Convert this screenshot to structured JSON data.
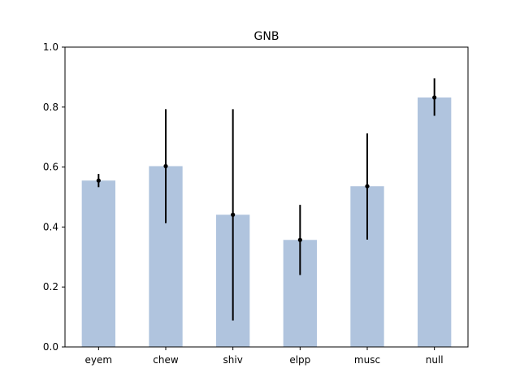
{
  "chart_data": {
    "type": "bar",
    "title": "GNB",
    "xlabel": "",
    "ylabel": "",
    "categories": [
      "eyem",
      "chew",
      "shiv",
      "elpp",
      "musc",
      "null"
    ],
    "values": [
      0.555,
      0.603,
      0.441,
      0.357,
      0.536,
      0.832
    ],
    "error_low": [
      0.533,
      0.413,
      0.088,
      0.24,
      0.358,
      0.771
    ],
    "error_high": [
      0.577,
      0.793,
      0.793,
      0.474,
      0.712,
      0.896
    ],
    "ylim": [
      0.0,
      1.0
    ],
    "yticks": [
      "0.0",
      "0.2",
      "0.4",
      "0.6",
      "0.8",
      "1.0"
    ],
    "bar_color": "#b0c4de",
    "error_color": "#000000",
    "grid": false,
    "legend": "none"
  }
}
